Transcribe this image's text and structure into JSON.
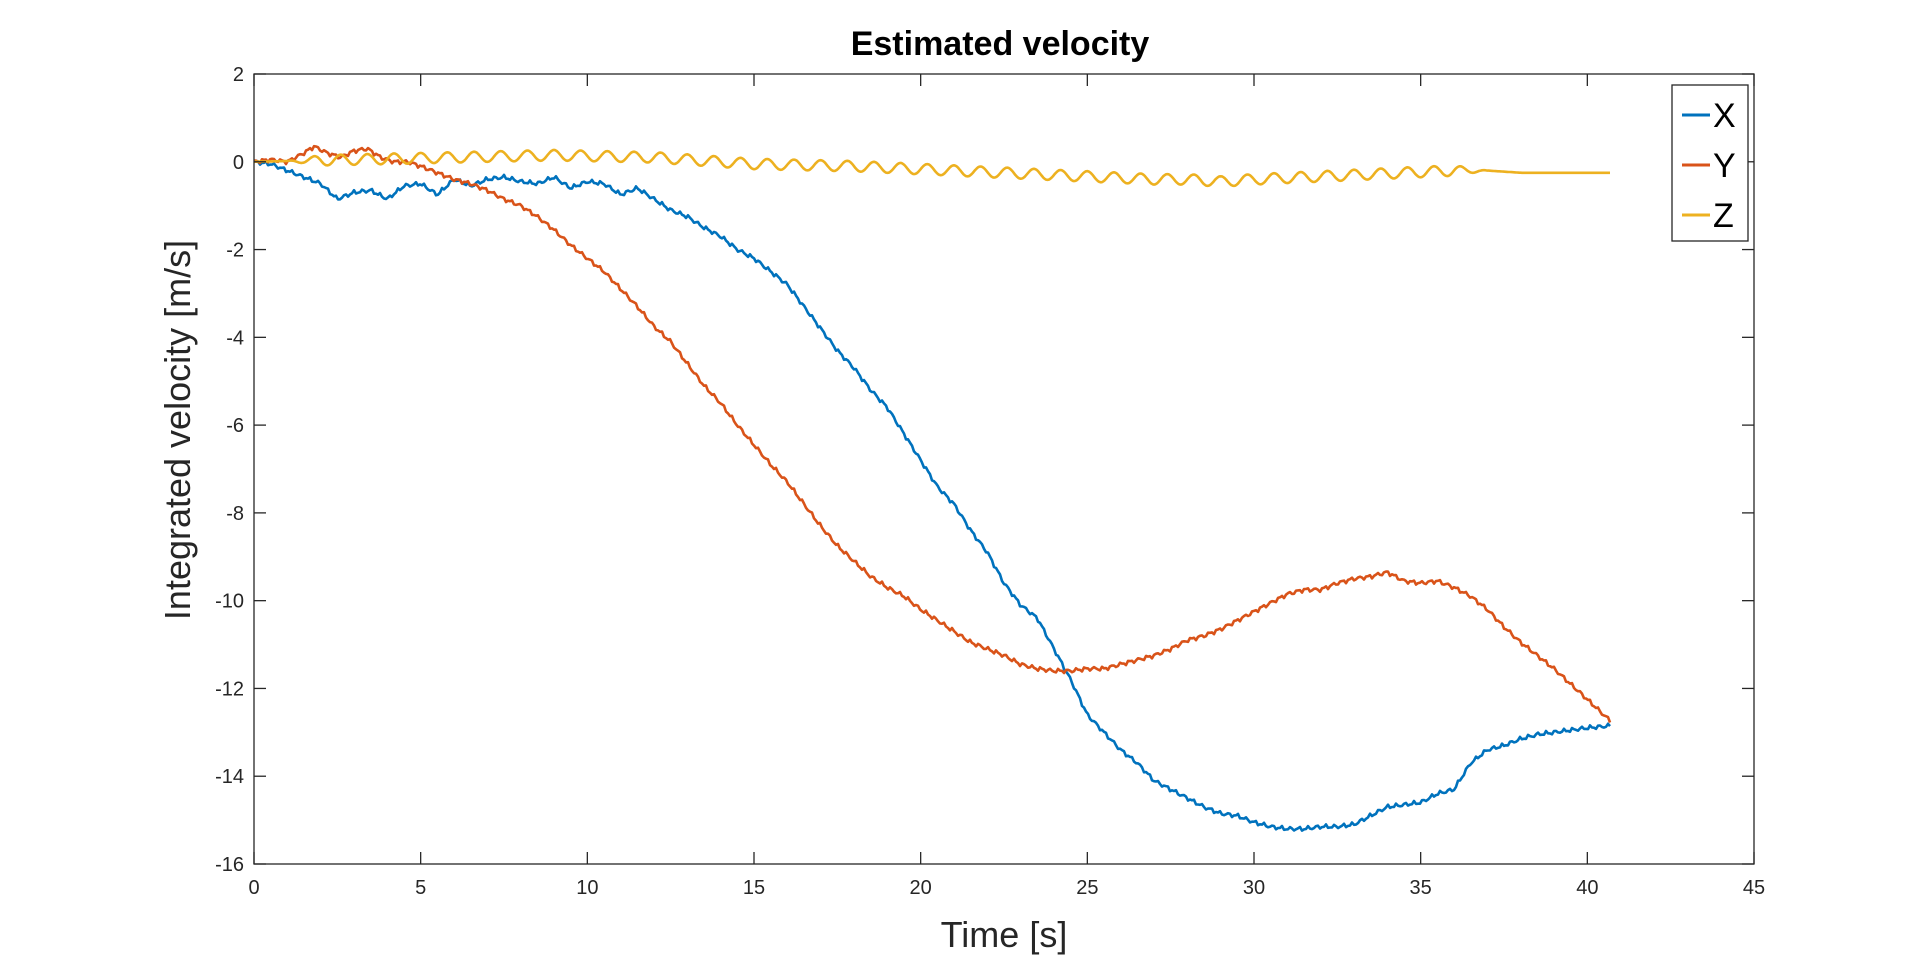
{
  "chart_data": {
    "type": "line",
    "title": "Estimated velocity",
    "xlabel": "Time [s]",
    "ylabel": "Integrated velocity [m/s]",
    "xlim": [
      0,
      45
    ],
    "ylim": [
      -16,
      2
    ],
    "xticks": [
      0,
      5,
      10,
      15,
      20,
      25,
      30,
      35,
      40,
      45
    ],
    "yticks": [
      -16,
      -14,
      -12,
      -10,
      -8,
      -6,
      -4,
      -2,
      0,
      2
    ],
    "grid": false,
    "legend_position": "top-right",
    "series": [
      {
        "name": "X",
        "color": "#0072BD",
        "x": [
          0,
          0.5,
          1,
          1.5,
          2,
          2.5,
          3,
          3.5,
          4,
          4.5,
          5,
          5.5,
          6,
          6.5,
          7,
          7.5,
          8,
          8.5,
          9,
          9.5,
          10,
          10.5,
          11,
          11.5,
          12,
          12.5,
          13,
          13.5,
          14,
          14.5,
          15,
          15.5,
          16,
          16.5,
          17,
          17.5,
          18,
          18.5,
          19,
          19.5,
          20,
          20.5,
          21,
          21.5,
          22,
          22.5,
          23,
          23.5,
          24,
          24.5,
          25,
          25.5,
          26,
          26.5,
          27,
          27.5,
          28,
          28.5,
          29,
          29.5,
          30,
          30.5,
          31,
          31.5,
          32,
          32.5,
          33,
          33.5,
          34,
          34.5,
          35,
          35.5,
          36,
          36.5,
          37,
          37.5,
          38,
          38.5,
          39,
          39.5,
          40,
          40.7
        ],
        "y": [
          0,
          -0.05,
          -0.2,
          -0.35,
          -0.5,
          -0.85,
          -0.7,
          -0.65,
          -0.85,
          -0.55,
          -0.5,
          -0.75,
          -0.4,
          -0.55,
          -0.4,
          -0.35,
          -0.45,
          -0.5,
          -0.35,
          -0.6,
          -0.45,
          -0.5,
          -0.75,
          -0.6,
          -0.85,
          -1.1,
          -1.25,
          -1.5,
          -1.7,
          -2.0,
          -2.2,
          -2.5,
          -2.8,
          -3.3,
          -3.8,
          -4.3,
          -4.7,
          -5.2,
          -5.6,
          -6.2,
          -6.8,
          -7.4,
          -7.8,
          -8.4,
          -8.9,
          -9.6,
          -10.1,
          -10.4,
          -11.1,
          -11.8,
          -12.6,
          -13.0,
          -13.4,
          -13.7,
          -14.1,
          -14.3,
          -14.5,
          -14.7,
          -14.85,
          -14.9,
          -15.05,
          -15.15,
          -15.2,
          -15.2,
          -15.15,
          -15.15,
          -15.1,
          -14.9,
          -14.7,
          -14.65,
          -14.6,
          -14.4,
          -14.3,
          -13.7,
          -13.4,
          -13.3,
          -13.15,
          -13.05,
          -13.0,
          -12.95,
          -12.9,
          -12.85
        ]
      },
      {
        "name": "Y",
        "color": "#D95319",
        "x": [
          0,
          0.5,
          1,
          1.5,
          1.8,
          2.2,
          2.6,
          3,
          3.4,
          3.8,
          4.2,
          4.6,
          5,
          5.5,
          6,
          6.5,
          7,
          7.5,
          8,
          8.5,
          9,
          9.5,
          10,
          10.5,
          11,
          11.5,
          12,
          12.5,
          13,
          13.5,
          14,
          14.5,
          15,
          15.5,
          16,
          16.5,
          17,
          17.5,
          18,
          18.5,
          19,
          19.5,
          20,
          20.5,
          21,
          21.5,
          22,
          22.5,
          23,
          23.5,
          24,
          24.5,
          25,
          25.5,
          26,
          26.5,
          27,
          27.5,
          28,
          28.5,
          29,
          29.5,
          30,
          30.5,
          31,
          31.5,
          32,
          32.5,
          33,
          33.5,
          34,
          34.5,
          35,
          35.5,
          36,
          36.5,
          37,
          37.5,
          38,
          38.5,
          39,
          39.5,
          40,
          40.7
        ],
        "y": [
          0,
          0.05,
          0.0,
          0.2,
          0.35,
          0.2,
          0.1,
          0.25,
          0.3,
          0.1,
          0.0,
          0.0,
          -0.1,
          -0.25,
          -0.4,
          -0.5,
          -0.65,
          -0.85,
          -1.0,
          -1.25,
          -1.55,
          -1.9,
          -2.2,
          -2.5,
          -2.9,
          -3.3,
          -3.75,
          -4.1,
          -4.6,
          -5.1,
          -5.5,
          -6.0,
          -6.45,
          -6.9,
          -7.3,
          -7.8,
          -8.3,
          -8.75,
          -9.1,
          -9.45,
          -9.7,
          -9.9,
          -10.2,
          -10.45,
          -10.7,
          -10.95,
          -11.1,
          -11.25,
          -11.45,
          -11.55,
          -11.6,
          -11.6,
          -11.55,
          -11.55,
          -11.45,
          -11.35,
          -11.25,
          -11.1,
          -10.9,
          -10.8,
          -10.65,
          -10.45,
          -10.25,
          -10.05,
          -9.85,
          -9.75,
          -9.75,
          -9.6,
          -9.5,
          -9.45,
          -9.35,
          -9.55,
          -9.6,
          -9.55,
          -9.7,
          -9.9,
          -10.2,
          -10.6,
          -10.95,
          -11.25,
          -11.55,
          -11.9,
          -12.25,
          -12.75
        ]
      },
      {
        "name": "Z",
        "color": "#EDB120",
        "x": [
          0,
          3,
          6,
          9,
          12,
          15,
          18,
          21,
          24,
          27,
          28,
          29,
          30,
          33,
          36,
          37,
          38,
          40.7
        ],
        "y": [
          0,
          0.05,
          0.1,
          0.15,
          0.1,
          -0.05,
          -0.1,
          -0.2,
          -0.3,
          -0.4,
          -0.4,
          -0.45,
          -0.4,
          -0.3,
          -0.2,
          -0.2,
          -0.25,
          -0.25
        ],
        "oscillation_amplitude": 0.12,
        "oscillation_period": 0.8,
        "oscillation_range": [
          1.0,
          37.0
        ]
      }
    ]
  }
}
